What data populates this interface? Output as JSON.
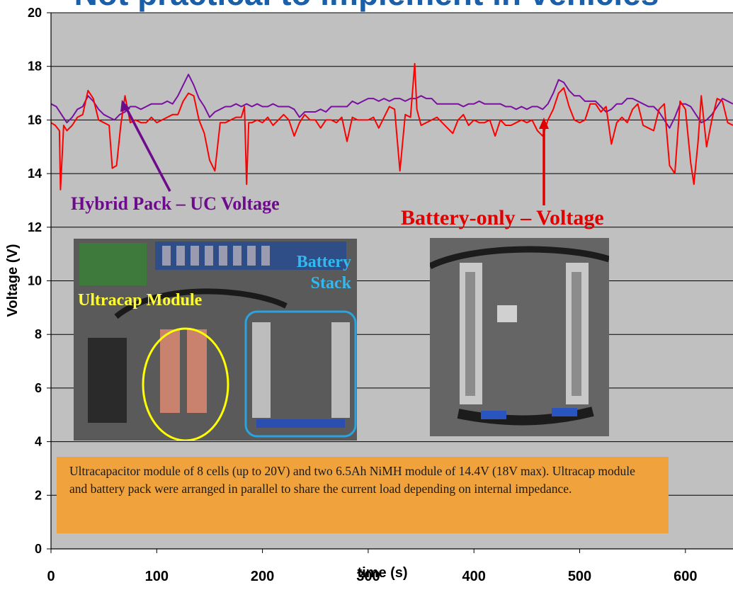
{
  "chart_data": {
    "type": "line",
    "title": "Not practical to implement in vehicles",
    "xlabel": "time (s)",
    "ylabel": "Voltage (V)",
    "xlim": [
      0,
      645
    ],
    "ylim": [
      0,
      20
    ],
    "x_ticks": [
      0,
      100,
      200,
      300,
      400,
      500,
      600
    ],
    "y_ticks": [
      0,
      2,
      4,
      6,
      8,
      10,
      12,
      14,
      16,
      18,
      20
    ],
    "grid": "horizontal",
    "background": "#c0c0c0",
    "series": [
      {
        "name": "Hybrid Pack – UC Voltage",
        "color": "#7a0fa0",
        "x": [
          0,
          5,
          10,
          15,
          20,
          25,
          30,
          35,
          40,
          45,
          50,
          55,
          60,
          65,
          70,
          75,
          80,
          85,
          90,
          95,
          100,
          105,
          110,
          115,
          120,
          125,
          130,
          135,
          140,
          145,
          150,
          155,
          160,
          165,
          170,
          175,
          180,
          185,
          190,
          195,
          200,
          205,
          210,
          215,
          220,
          225,
          230,
          235,
          240,
          245,
          250,
          255,
          260,
          265,
          270,
          275,
          280,
          285,
          290,
          295,
          300,
          305,
          310,
          315,
          320,
          325,
          330,
          335,
          340,
          345,
          350,
          355,
          360,
          365,
          370,
          375,
          380,
          385,
          390,
          395,
          400,
          405,
          410,
          415,
          420,
          425,
          430,
          435,
          440,
          445,
          450,
          455,
          460,
          465,
          470,
          475,
          480,
          485,
          490,
          495,
          500,
          505,
          510,
          515,
          520,
          525,
          530,
          535,
          540,
          545,
          550,
          555,
          560,
          565,
          570,
          575,
          580,
          585,
          590,
          595,
          600,
          605,
          610,
          615,
          620,
          625,
          630,
          635,
          640,
          645
        ],
        "values": [
          16.6,
          16.5,
          16.2,
          15.9,
          16.1,
          16.4,
          16.5,
          16.9,
          16.7,
          16.4,
          16.2,
          16.1,
          16.0,
          16.2,
          16.3,
          16.5,
          16.5,
          16.4,
          16.5,
          16.6,
          16.6,
          16.6,
          16.7,
          16.6,
          16.9,
          17.3,
          17.7,
          17.3,
          16.8,
          16.5,
          16.1,
          16.3,
          16.4,
          16.5,
          16.5,
          16.6,
          16.5,
          16.6,
          16.5,
          16.6,
          16.5,
          16.5,
          16.6,
          16.5,
          16.5,
          16.5,
          16.4,
          16.1,
          16.3,
          16.3,
          16.3,
          16.4,
          16.3,
          16.5,
          16.5,
          16.5,
          16.5,
          16.7,
          16.6,
          16.7,
          16.8,
          16.8,
          16.7,
          16.8,
          16.7,
          16.8,
          16.8,
          16.7,
          16.8,
          16.8,
          16.9,
          16.8,
          16.8,
          16.6,
          16.6,
          16.6,
          16.6,
          16.6,
          16.5,
          16.6,
          16.6,
          16.7,
          16.6,
          16.6,
          16.6,
          16.6,
          16.5,
          16.5,
          16.4,
          16.5,
          16.4,
          16.5,
          16.5,
          16.4,
          16.6,
          17.0,
          17.5,
          17.4,
          17.1,
          16.9,
          16.9,
          16.7,
          16.7,
          16.7,
          16.5,
          16.3,
          16.4,
          16.6,
          16.6,
          16.8,
          16.8,
          16.7,
          16.6,
          16.5,
          16.5,
          16.3,
          16.0,
          15.7,
          16.1,
          16.6,
          16.6,
          16.5,
          16.2,
          15.9,
          16.0,
          16.2,
          16.5,
          16.8,
          16.7,
          16.6
        ]
      },
      {
        "name": "Battery-only – Voltage",
        "color": "#ff0000",
        "x": [
          0,
          4,
          8,
          9,
          10,
          12,
          15,
          20,
          25,
          30,
          35,
          40,
          45,
          50,
          55,
          58,
          62,
          66,
          70,
          75,
          80,
          85,
          90,
          95,
          100,
          105,
          110,
          115,
          120,
          125,
          130,
          135,
          140,
          145,
          150,
          155,
          160,
          165,
          170,
          175,
          180,
          183,
          185,
          187,
          190,
          195,
          200,
          205,
          210,
          215,
          220,
          225,
          230,
          235,
          240,
          245,
          250,
          255,
          260,
          265,
          270,
          275,
          280,
          285,
          290,
          295,
          300,
          305,
          310,
          315,
          320,
          325,
          330,
          335,
          340,
          344,
          346,
          350,
          355,
          360,
          365,
          370,
          375,
          380,
          385,
          390,
          395,
          400,
          405,
          410,
          415,
          420,
          425,
          430,
          435,
          440,
          445,
          450,
          455,
          460,
          465,
          470,
          475,
          480,
          485,
          490,
          495,
          500,
          505,
          510,
          515,
          520,
          525,
          530,
          535,
          540,
          545,
          550,
          555,
          560,
          565,
          570,
          575,
          580,
          585,
          590,
          595,
          600,
          605,
          608,
          612,
          615,
          620,
          625,
          630,
          635,
          640,
          645
        ],
        "values": [
          15.9,
          15.8,
          15.6,
          13.4,
          14.2,
          15.8,
          15.6,
          15.8,
          16.1,
          16.2,
          17.1,
          16.8,
          16.0,
          15.9,
          15.8,
          14.2,
          14.3,
          15.8,
          16.9,
          15.9,
          16.0,
          15.9,
          15.9,
          16.1,
          15.9,
          16.0,
          16.1,
          16.2,
          16.2,
          16.7,
          17.0,
          16.9,
          16.0,
          15.5,
          14.5,
          14.1,
          15.9,
          15.9,
          16.0,
          16.1,
          16.1,
          16.5,
          13.6,
          15.9,
          15.9,
          16.0,
          15.9,
          16.1,
          15.8,
          16.0,
          16.2,
          16.0,
          15.4,
          15.9,
          16.2,
          16.0,
          16.0,
          15.7,
          16.0,
          16.0,
          15.9,
          16.1,
          15.2,
          16.1,
          16.0,
          16.0,
          16.0,
          16.1,
          15.7,
          16.1,
          16.5,
          16.4,
          14.1,
          16.2,
          16.1,
          18.1,
          16.4,
          15.8,
          15.9,
          16.0,
          16.1,
          15.9,
          15.7,
          15.5,
          16.0,
          16.2,
          15.8,
          16.0,
          15.9,
          15.9,
          16.0,
          15.4,
          16.0,
          15.8,
          15.8,
          15.9,
          16.0,
          15.9,
          16.0,
          15.6,
          15.4,
          16.0,
          16.4,
          17.0,
          17.2,
          16.5,
          16.0,
          15.9,
          16.0,
          16.6,
          16.6,
          16.3,
          16.5,
          15.1,
          15.9,
          16.1,
          15.9,
          16.4,
          16.6,
          15.8,
          15.7,
          15.6,
          16.4,
          16.6,
          14.3,
          14.0,
          16.7,
          16.4,
          14.4,
          13.6,
          15.2,
          16.9,
          15.0,
          16.0,
          16.8,
          16.7,
          15.9,
          15.8
        ]
      }
    ],
    "annotations": {
      "hybrid_label": "Hybrid Pack – UC Voltage",
      "battery_label": "Battery-only – Voltage"
    }
  },
  "photos": {
    "left": {
      "ultracap_label": "Ultracap Module",
      "battery_label": "Battery Stack"
    }
  },
  "note": {
    "text": "Ultracapacitor module of 8 cells (up to 20V) and two 6.5Ah NiMH module of 14.4V (18V max). Ultracap module and battery pack were arranged in parallel to share the current load depending on internal impedance."
  }
}
